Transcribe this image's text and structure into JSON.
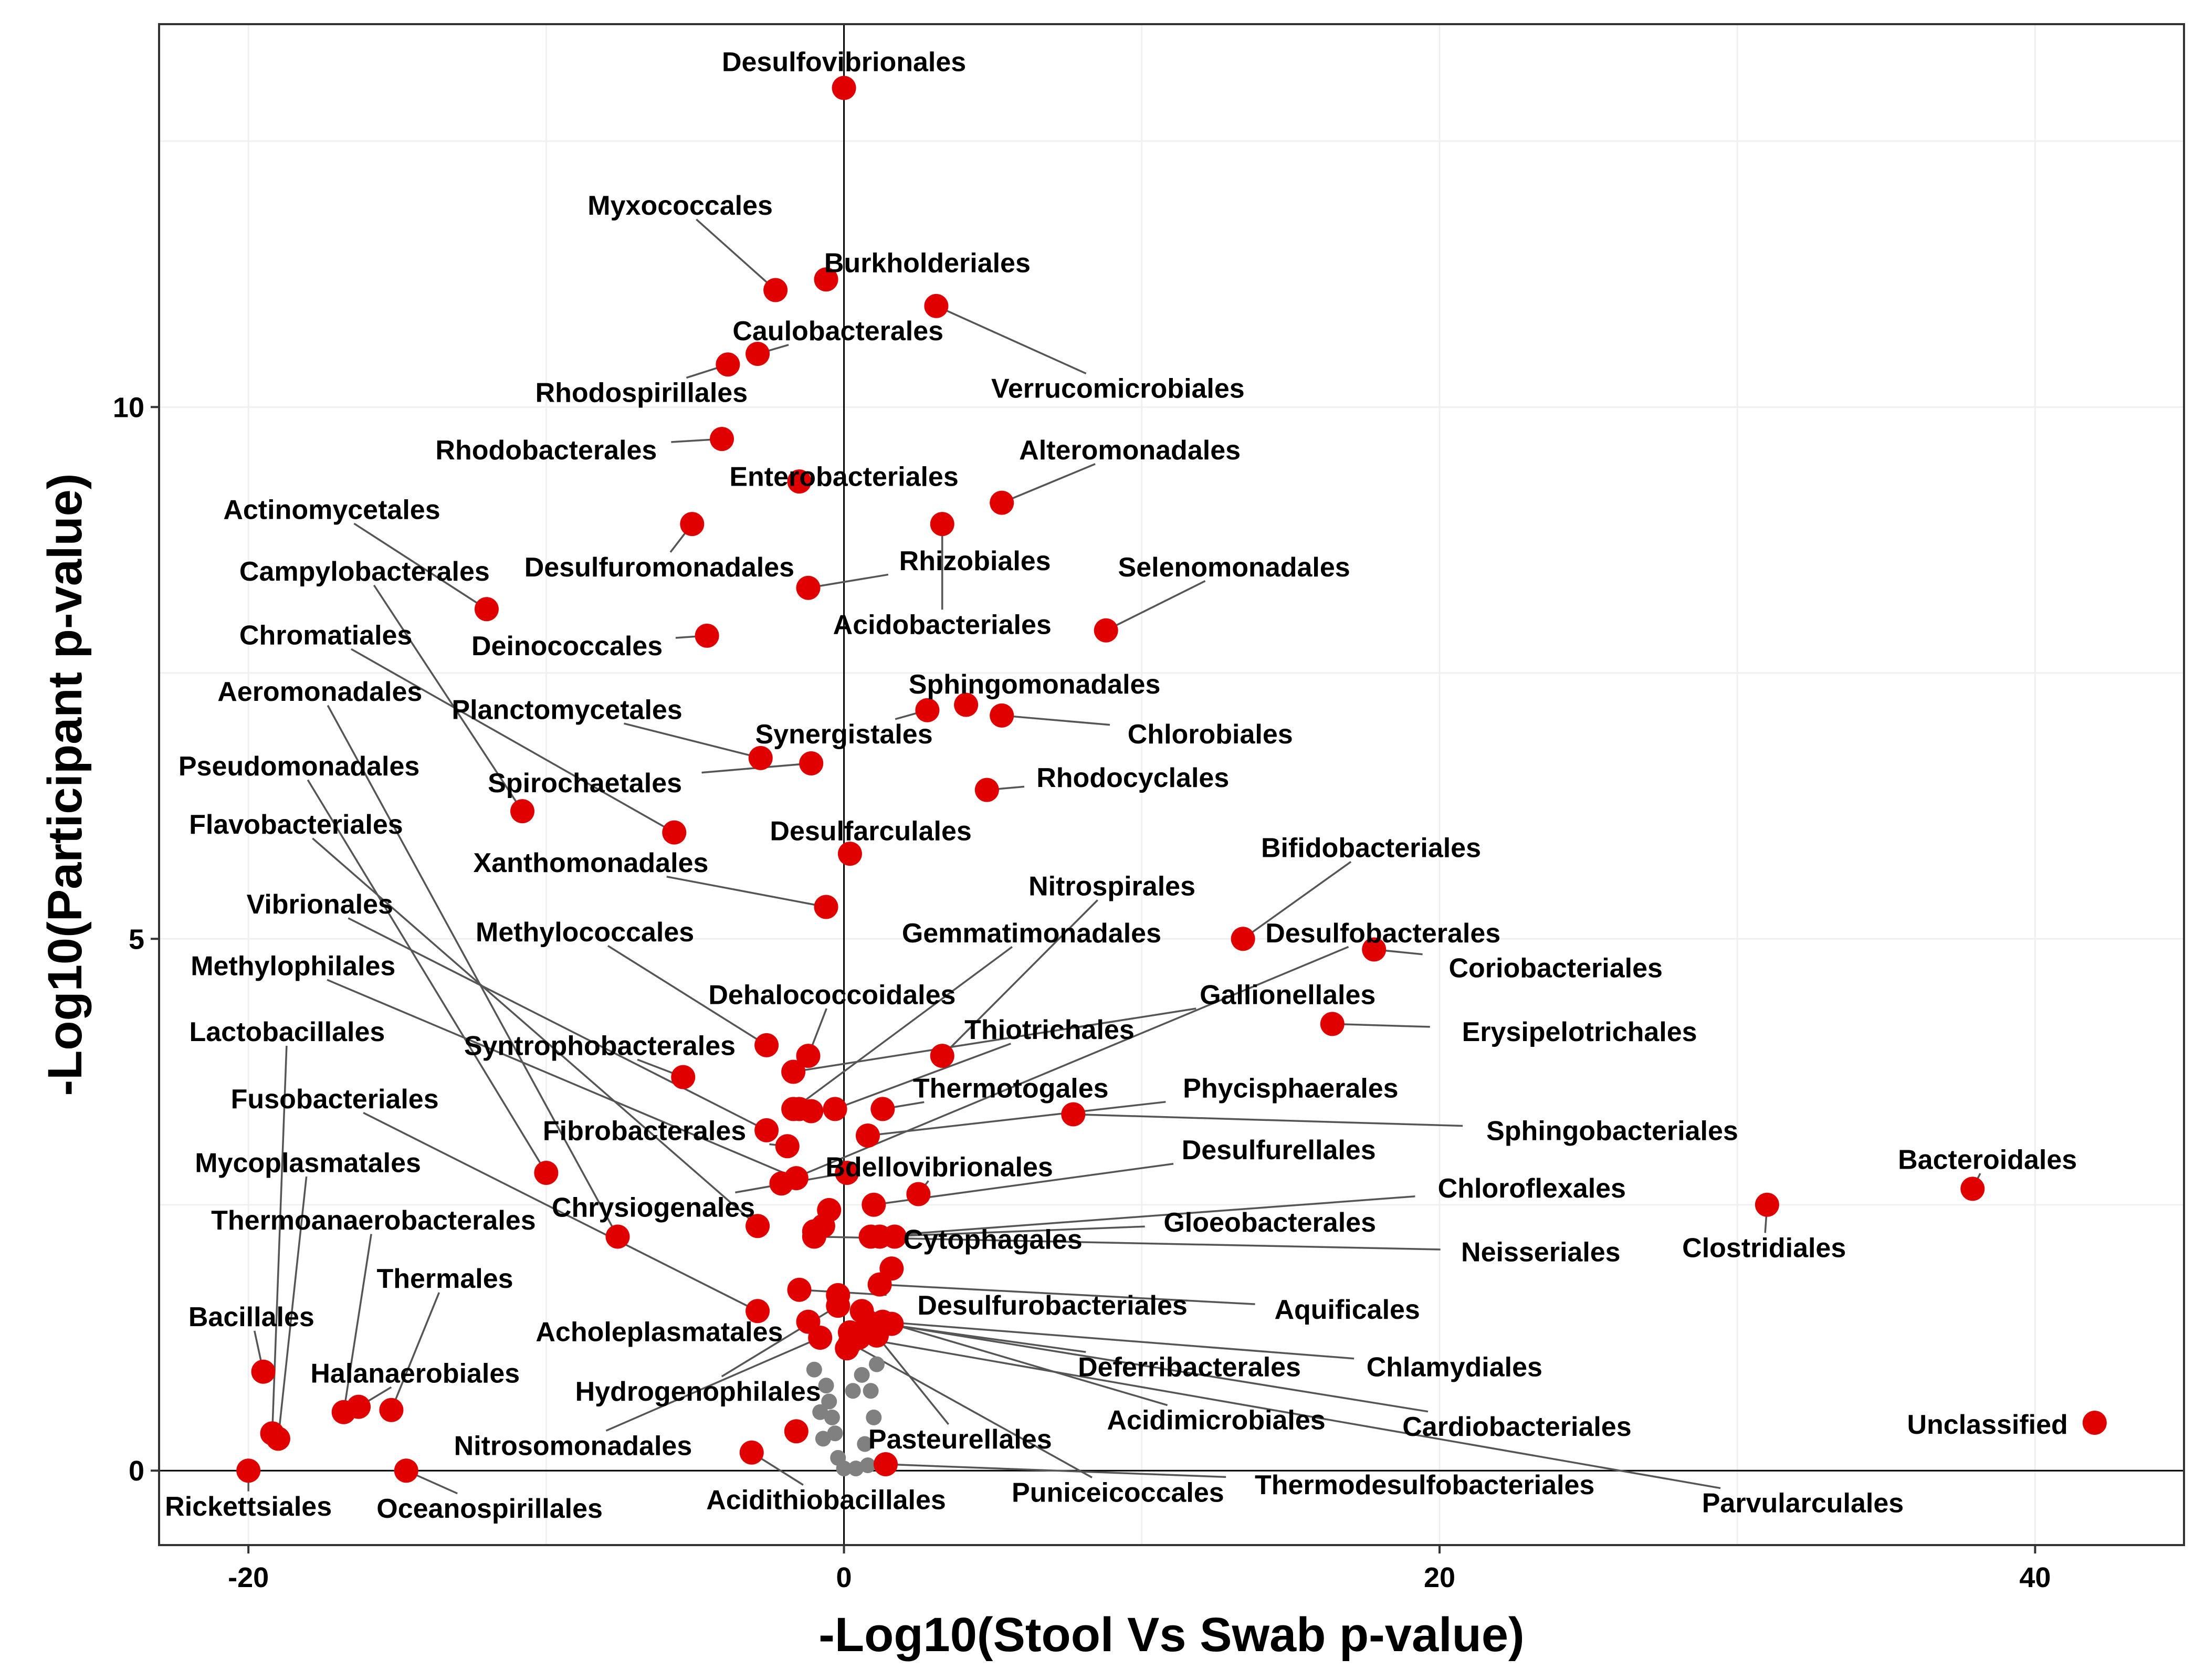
{
  "chart_data": {
    "type": "scatter",
    "title": "",
    "xlabel": "-Log10(Stool Vs Swab p-value)",
    "ylabel": "-Log10(Participant p-value)",
    "xlim": [
      -23,
      45
    ],
    "ylim": [
      -0.7,
      13.6
    ],
    "x_ticks": [
      -20,
      0,
      20,
      40
    ],
    "x_tick_labels": [
      "-20",
      "0",
      "20",
      "40"
    ],
    "y_ticks": [
      0,
      5,
      10
    ],
    "y_tick_labels": [
      "0",
      "5",
      "10"
    ],
    "grid": true,
    "legend": "none",
    "colors": {
      "significant": "#e00000",
      "insignificant": "#808080",
      "text": "#000000",
      "connector": "#555555",
      "grid": "#f0f0f0"
    },
    "points": [
      {
        "name": "Desulfovibrionales",
        "x": 0.0,
        "y": 13.0,
        "lx": 0.0,
        "ly": 13.25
      },
      {
        "name": "Myxococcales",
        "x": -2.3,
        "y": 11.1,
        "lx": -5.5,
        "ly": 11.9
      },
      {
        "name": "Burkholderiales",
        "x": -0.6,
        "y": 11.2,
        "lx": 2.8,
        "ly": 11.36
      },
      {
        "name": "Verrucomicrobiales",
        "x": 3.1,
        "y": 10.95,
        "lx": 9.2,
        "ly": 10.18
      },
      {
        "name": "Caulobacterales",
        "x": -2.9,
        "y": 10.5,
        "lx": -0.2,
        "ly": 10.72
      },
      {
        "name": "Rhodospirillales",
        "x": -3.9,
        "y": 10.4,
        "lx": -6.8,
        "ly": 10.14
      },
      {
        "name": "Rhodobacterales",
        "x": -4.1,
        "y": 9.7,
        "lx": -10.0,
        "ly": 9.6
      },
      {
        "name": "Enterobacteriales",
        "x": -1.5,
        "y": 9.3,
        "lx": 0.0,
        "ly": 9.35
      },
      {
        "name": "Alteromonadales",
        "x": 5.3,
        "y": 9.1,
        "lx": 9.6,
        "ly": 9.6
      },
      {
        "name": "Actinomycetales",
        "x": -12.0,
        "y": 8.1,
        "lx": -17.2,
        "ly": 9.04
      },
      {
        "name": "Desulfuromonadales",
        "x": -5.1,
        "y": 8.9,
        "lx": -6.2,
        "ly": 8.5
      },
      {
        "name": "Rhizobiales",
        "x": -1.2,
        "y": 8.3,
        "lx": 4.4,
        "ly": 8.56
      },
      {
        "name": "Acidobacteriales",
        "x": 3.3,
        "y": 8.9,
        "lx": 3.3,
        "ly": 7.96
      },
      {
        "name": "Selenomonadales",
        "x": 8.8,
        "y": 7.9,
        "lx": 13.1,
        "ly": 8.5
      },
      {
        "name": "Campylobacterales",
        "x": -10.8,
        "y": 6.2,
        "lx": -16.1,
        "ly": 8.46
      },
      {
        "name": "Deinococcales",
        "x": -4.6,
        "y": 7.85,
        "lx": -9.3,
        "ly": 7.76
      },
      {
        "name": "Chromatiales",
        "x": -5.7,
        "y": 6.0,
        "lx": -17.4,
        "ly": 7.86
      },
      {
        "name": "Sphingomonadales",
        "x": 4.1,
        "y": 7.2,
        "lx": 6.4,
        "ly": 7.4
      },
      {
        "name": "Aeromonadales",
        "x": -7.6,
        "y": 2.2,
        "lx": -17.6,
        "ly": 7.33
      },
      {
        "name": "Planctomycetales",
        "x": -2.8,
        "y": 6.7,
        "lx": -9.3,
        "ly": 7.16
      },
      {
        "name": "Chlorobiales",
        "x": 5.3,
        "y": 7.1,
        "lx": 12.3,
        "ly": 6.93
      },
      {
        "name": "Synergistales",
        "x": 2.8,
        "y": 7.15,
        "lx": 0.0,
        "ly": 6.93
      },
      {
        "name": "Pseudomonadales",
        "x": -10.0,
        "y": 2.8,
        "lx": -18.3,
        "ly": 6.63
      },
      {
        "name": "Spirochaetales",
        "x": -1.1,
        "y": 6.65,
        "lx": -8.7,
        "ly": 6.47
      },
      {
        "name": "Rhodocyclales",
        "x": 4.8,
        "y": 6.4,
        "lx": 9.7,
        "ly": 6.52
      },
      {
        "name": "Flavobacteriales",
        "x": -2.9,
        "y": 2.3,
        "lx": -18.4,
        "ly": 6.08
      },
      {
        "name": "Desulfarculales",
        "x": 0.2,
        "y": 5.8,
        "lx": 0.9,
        "ly": 6.02
      },
      {
        "name": "Xanthomonadales",
        "x": -0.6,
        "y": 5.3,
        "lx": -8.5,
        "ly": 5.72
      },
      {
        "name": "Bifidobacteriales",
        "x": 13.4,
        "y": 5.0,
        "lx": 17.7,
        "ly": 5.86
      },
      {
        "name": "Nitrospirales",
        "x": 3.3,
        "y": 3.9,
        "lx": 9.0,
        "ly": 5.5
      },
      {
        "name": "Vibrionales",
        "x": -2.6,
        "y": 3.2,
        "lx": -17.6,
        "ly": 5.33
      },
      {
        "name": "Gemmatimonadales",
        "x": -1.7,
        "y": 3.4,
        "lx": 6.3,
        "ly": 5.06
      },
      {
        "name": "Desulfobacterales",
        "x": -2.1,
        "y": 2.7,
        "lx": 18.1,
        "ly": 5.06
      },
      {
        "name": "Methylococcales",
        "x": -2.6,
        "y": 4.0,
        "lx": -8.7,
        "ly": 5.07
      },
      {
        "name": "Coriobacteriales",
        "x": 17.8,
        "y": 4.9,
        "lx": 23.9,
        "ly": 4.73
      },
      {
        "name": "Methylophilales",
        "x": -1.6,
        "y": 2.75,
        "lx": -18.5,
        "ly": 4.75
      },
      {
        "name": "Dehalococcoidales",
        "x": -1.2,
        "y": 3.9,
        "lx": -0.4,
        "ly": 4.48
      },
      {
        "name": "Gallionellales",
        "x": -1.7,
        "y": 3.75,
        "lx": 14.9,
        "ly": 4.48
      },
      {
        "name": "Erysipelotrichales",
        "x": 16.4,
        "y": 4.2,
        "lx": 24.7,
        "ly": 4.13
      },
      {
        "name": "Thiotrichales",
        "x": -0.3,
        "y": 3.4,
        "lx": 6.9,
        "ly": 4.15
      },
      {
        "name": "Lactobacillales",
        "x": -19.2,
        "y": 0.35,
        "lx": -18.7,
        "ly": 4.13
      },
      {
        "name": "Syntrophobacterales",
        "x": -5.4,
        "y": 3.7,
        "lx": -8.2,
        "ly": 4.0
      },
      {
        "name": "Thermotogales",
        "x": 1.3,
        "y": 3.4,
        "lx": 5.6,
        "ly": 3.6
      },
      {
        "name": "Phycisphaerales",
        "x": 0.8,
        "y": 3.15,
        "lx": 15.0,
        "ly": 3.6
      },
      {
        "name": "Fusobacteriales",
        "x": -2.9,
        "y": 1.5,
        "lx": -17.1,
        "ly": 3.5
      },
      {
        "name": "Fibrobacterales",
        "x": -1.9,
        "y": 3.05,
        "lx": -6.7,
        "ly": 3.2
      },
      {
        "name": "Sphingobacteriales",
        "x": 7.7,
        "y": 3.35,
        "lx": 25.8,
        "ly": 3.2
      },
      {
        "name": "Desulfurellales",
        "x": 1.0,
        "y": 2.5,
        "lx": 14.6,
        "ly": 3.02
      },
      {
        "name": "Bdellovibrionales",
        "x": 2.5,
        "y": 2.6,
        "lx": 3.2,
        "ly": 2.86
      },
      {
        "name": "Mycoplasmatales",
        "x": -19.0,
        "y": 0.3,
        "lx": -18.0,
        "ly": 2.9
      },
      {
        "name": "Bacteroidales",
        "x": 37.9,
        "y": 2.65,
        "lx": 38.4,
        "ly": 2.93
      },
      {
        "name": "Chloroflexales",
        "x": 0.9,
        "y": 2.2,
        "lx": 23.1,
        "ly": 2.66
      },
      {
        "name": "Chrysiogenales",
        "x": 0.1,
        "y": 2.8,
        "lx": -6.4,
        "ly": 2.48
      },
      {
        "name": "Thermoanaerobacterales",
        "x": -16.8,
        "y": 0.55,
        "lx": -15.8,
        "ly": 2.36
      },
      {
        "name": "Gloeobacterales",
        "x": 1.2,
        "y": 2.2,
        "lx": 14.3,
        "ly": 2.34
      },
      {
        "name": "Clostridiales",
        "x": 31.0,
        "y": 2.5,
        "lx": 30.9,
        "ly": 2.1
      },
      {
        "name": "Cytophagales",
        "x": 1.7,
        "y": 2.2,
        "lx": 5.0,
        "ly": 2.18
      },
      {
        "name": "Neisseriales",
        "x": -1.0,
        "y": 2.2,
        "lx": 23.4,
        "ly": 2.06
      },
      {
        "name": "Thermales",
        "x": -15.2,
        "y": 0.57,
        "lx": -13.4,
        "ly": 1.81
      },
      {
        "name": "Desulfurobacteriales",
        "x": -1.5,
        "y": 1.7,
        "lx": 7.0,
        "ly": 1.56
      },
      {
        "name": "Aquificales",
        "x": 1.2,
        "y": 1.75,
        "lx": 16.9,
        "ly": 1.52
      },
      {
        "name": "Bacillales",
        "x": -19.5,
        "y": 0.93,
        "lx": -19.9,
        "ly": 1.45
      },
      {
        "name": "Acholeplasmatales",
        "x": -1.2,
        "y": 1.4,
        "lx": -6.2,
        "ly": 1.31
      },
      {
        "name": "Halanaerobiales",
        "x": -16.3,
        "y": 0.6,
        "lx": -14.4,
        "ly": 0.92
      },
      {
        "name": "Deferribacterales",
        "x": 0.8,
        "y": 1.4,
        "lx": 11.6,
        "ly": 0.98
      },
      {
        "name": "Chlamydiales",
        "x": 1.3,
        "y": 1.4,
        "lx": 20.5,
        "ly": 0.98
      },
      {
        "name": "Hydrogenophilales",
        "x": -0.2,
        "y": 1.55,
        "lx": -4.9,
        "ly": 0.75
      },
      {
        "name": "Acidimicrobiales",
        "x": 1.6,
        "y": 1.38,
        "lx": 12.5,
        "ly": 0.48
      },
      {
        "name": "Cardiobacteriales",
        "x": 1.4,
        "y": 1.38,
        "lx": 22.6,
        "ly": 0.42
      },
      {
        "name": "Unclassified",
        "x": 42.0,
        "y": 0.45,
        "lx": 38.4,
        "ly": 0.44
      },
      {
        "name": "Pasteurellales",
        "x": 1.1,
        "y": 1.27,
        "lx": 3.9,
        "ly": 0.3
      },
      {
        "name": "Nitrosomonadales",
        "x": -0.8,
        "y": 1.25,
        "lx": -9.1,
        "ly": 0.24
      },
      {
        "name": "Rickettsiales",
        "x": -20.0,
        "y": 0.0,
        "lx": -20.0,
        "ly": -0.33
      },
      {
        "name": "Oceanospirillales",
        "x": -14.7,
        "y": 0.0,
        "lx": -11.9,
        "ly": -0.35
      },
      {
        "name": "Acidithiobacillales",
        "x": -3.1,
        "y": 0.17,
        "lx": -0.6,
        "ly": -0.27
      },
      {
        "name": "Puniceicoccales",
        "x": 0.2,
        "y": 1.2,
        "lx": 9.2,
        "ly": -0.2
      },
      {
        "name": "Thermodesulfobacteriales",
        "x": 1.4,
        "y": 0.06,
        "lx": 19.5,
        "ly": -0.13
      },
      {
        "name": "Parvularculales",
        "x": 0.5,
        "y": 1.25,
        "lx": 32.2,
        "ly": -0.3
      },
      {
        "name": "",
        "x": -1.6,
        "y": 0.37,
        "lx": null,
        "ly": null
      },
      {
        "name": "",
        "x": -0.2,
        "y": 1.65,
        "lx": null,
        "ly": null
      },
      {
        "name": "",
        "x": -1.5,
        "y": 3.4,
        "lx": null,
        "ly": null
      },
      {
        "name": "",
        "x": -1.1,
        "y": 3.38,
        "lx": null,
        "ly": null
      },
      {
        "name": "",
        "x": -0.5,
        "y": 2.45,
        "lx": null,
        "ly": null
      },
      {
        "name": "",
        "x": -1.0,
        "y": 2.25,
        "lx": null,
        "ly": null
      },
      {
        "name": "",
        "x": -0.7,
        "y": 2.3,
        "lx": null,
        "ly": null
      },
      {
        "name": "",
        "x": 1.6,
        "y": 1.9,
        "lx": null,
        "ly": null
      },
      {
        "name": "",
        "x": 0.6,
        "y": 1.5,
        "lx": null,
        "ly": null
      },
      {
        "name": "",
        "x": 1.0,
        "y": 1.35,
        "lx": null,
        "ly": null
      },
      {
        "name": "",
        "x": 0.2,
        "y": 1.3,
        "lx": null,
        "ly": null
      },
      {
        "name": "",
        "x": 0.1,
        "y": 1.15,
        "lx": null,
        "ly": null
      }
    ],
    "gray_points": [
      {
        "x": -1.0,
        "y": 0.95
      },
      {
        "x": -0.6,
        "y": 0.8
      },
      {
        "x": -0.5,
        "y": 0.65
      },
      {
        "x": -0.4,
        "y": 0.5
      },
      {
        "x": -0.3,
        "y": 0.35
      },
      {
        "x": -0.7,
        "y": 0.3
      },
      {
        "x": -0.8,
        "y": 0.55
      },
      {
        "x": 0.3,
        "y": 0.75
      },
      {
        "x": 0.6,
        "y": 0.9
      },
      {
        "x": 0.9,
        "y": 0.75
      },
      {
        "x": 1.0,
        "y": 0.5
      },
      {
        "x": 0.7,
        "y": 0.25
      },
      {
        "x": 0.8,
        "y": 0.05
      },
      {
        "x": 0.4,
        "y": 0.02
      },
      {
        "x": 0.0,
        "y": 0.02
      },
      {
        "x": -0.2,
        "y": 0.12
      },
      {
        "x": 1.1,
        "y": 1.0
      }
    ]
  }
}
